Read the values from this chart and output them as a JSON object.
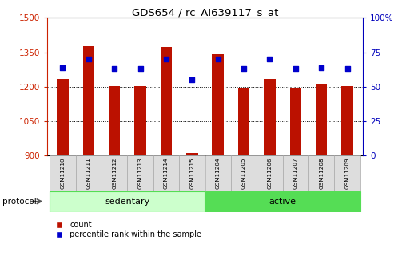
{
  "title": "GDS654 / rc_AI639117_s_at",
  "samples": [
    "GSM11210",
    "GSM11211",
    "GSM11212",
    "GSM11213",
    "GSM11214",
    "GSM11215",
    "GSM11204",
    "GSM11205",
    "GSM11206",
    "GSM11207",
    "GSM11208",
    "GSM11209"
  ],
  "counts": [
    1232,
    1375,
    1204,
    1201,
    1372,
    910,
    1340,
    1193,
    1232,
    1192,
    1210,
    1201
  ],
  "percentile_ranks": [
    64,
    70,
    63,
    63,
    70,
    55,
    70,
    63,
    70,
    63,
    64,
    63
  ],
  "groups": [
    "sedentary",
    "sedentary",
    "sedentary",
    "sedentary",
    "sedentary",
    "sedentary",
    "active",
    "active",
    "active",
    "active",
    "active",
    "active"
  ],
  "group_labels": [
    "sedentary",
    "active"
  ],
  "group_colors_light": "#ccffcc",
  "group_colors_bright": "#55dd55",
  "group_border_color": "#44aa44",
  "ylim_left": [
    900,
    1500
  ],
  "ylim_right": [
    0,
    100
  ],
  "yticks_left": [
    900,
    1050,
    1200,
    1350,
    1500
  ],
  "yticks_right": [
    0,
    25,
    50,
    75,
    100
  ],
  "bar_color_red": "#bb1100",
  "bar_color_blue": "#0000cc",
  "tick_color_left": "#cc2200",
  "tick_color_right": "#0000bb",
  "legend_red_label": "count",
  "legend_blue_label": "percentile rank within the sample",
  "protocol_label": "protocol",
  "sample_box_color": "#dddddd",
  "bar_width": 0.45
}
